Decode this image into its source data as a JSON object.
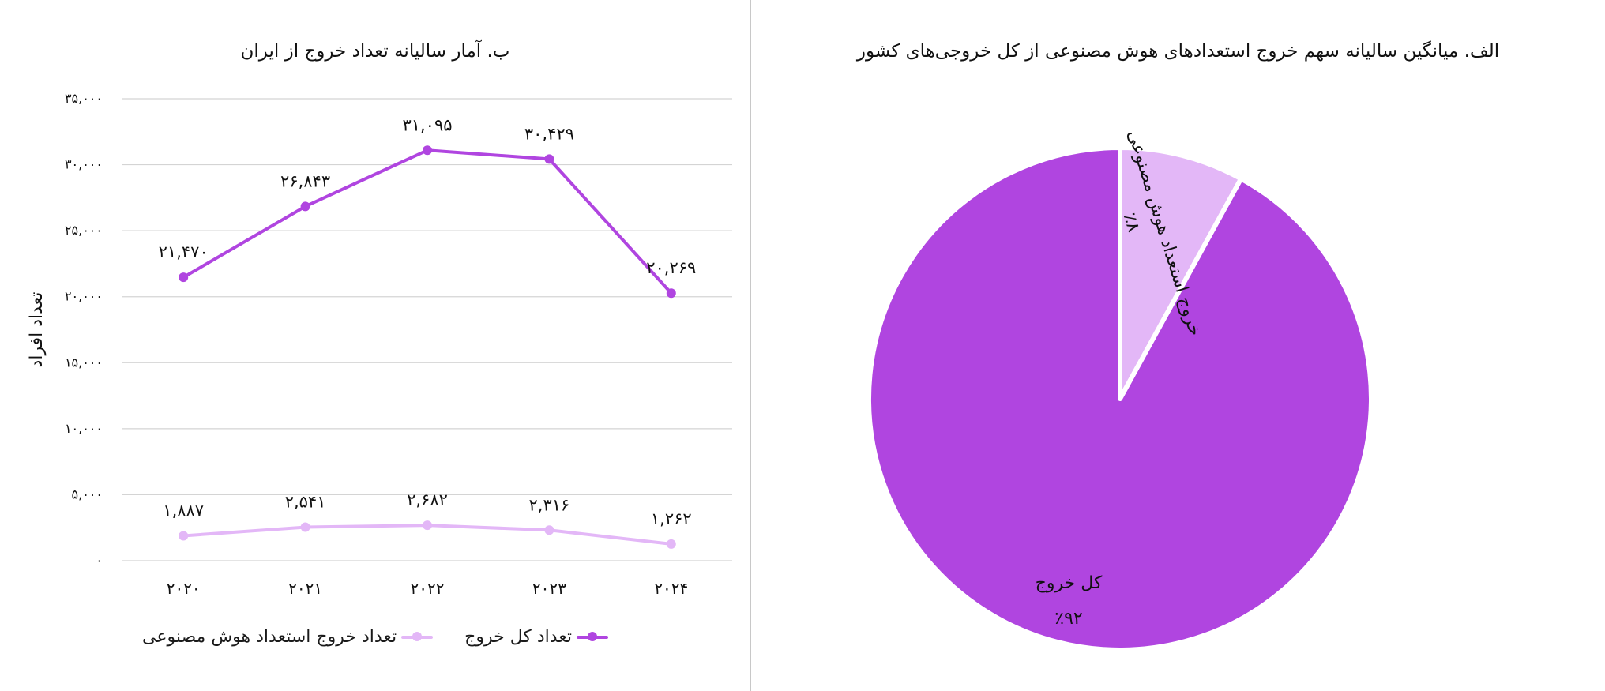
{
  "colors": {
    "primary": "#B045E0",
    "light": "#E3B7F7",
    "grid": "#d4d4d4",
    "divider": "#c8c8c8"
  },
  "chart_data": [
    {
      "type": "line",
      "title": "ب. آمار سالیانه تعداد خروج از ایران",
      "ylabel": "تعداد افراد",
      "xlabel": "",
      "x": [
        "۲۰۲۰",
        "۲۰۲۱",
        "۲۰۲۲",
        "۲۰۲۳",
        "۲۰۲۴"
      ],
      "ylim": [
        0,
        35000
      ],
      "yticks": [
        0,
        5000,
        10000,
        15000,
        20000,
        25000,
        30000,
        35000
      ],
      "ytick_labels": [
        "۰",
        "۵,۰۰۰",
        "۱۰,۰۰۰",
        "۱۵,۰۰۰",
        "۲۰,۰۰۰",
        "۲۵,۰۰۰",
        "۳۰,۰۰۰",
        "۳۵,۰۰۰"
      ],
      "grid": true,
      "legend_position": "bottom",
      "series": [
        {
          "name": "تعداد کل خروج",
          "color": "#B045E0",
          "values": [
            21470,
            26843,
            31095,
            30429,
            20269
          ],
          "labels": [
            "۲۱,۴۷۰",
            "۲۶,۸۴۳",
            "۳۱,۰۹۵",
            "۳۰,۴۲۹",
            "۲۰,۲۶۹"
          ]
        },
        {
          "name": "تعداد خروج استعداد هوش مصنوعی",
          "color": "#E3B7F7",
          "values": [
            1887,
            2541,
            2682,
            2316,
            1262
          ],
          "labels": [
            "۱,۸۸۷",
            "۲,۵۴۱",
            "۲,۶۸۲",
            "۲,۳۱۶",
            "۱,۲۶۲"
          ]
        }
      ]
    },
    {
      "type": "pie",
      "title": "الف. میانگین سالیانه سهم خروج استعدادهای هوش مصنوعی از کل خروجی‌های کشور",
      "slices": [
        {
          "label": "خروج استعداد هوش مصنوعی",
          "value": 8,
          "value_label": "٪۸",
          "color": "#E3B7F7"
        },
        {
          "label": "کل خروج",
          "value": 92,
          "value_label": "٪۹۲",
          "color": "#B045E0"
        }
      ]
    }
  ]
}
